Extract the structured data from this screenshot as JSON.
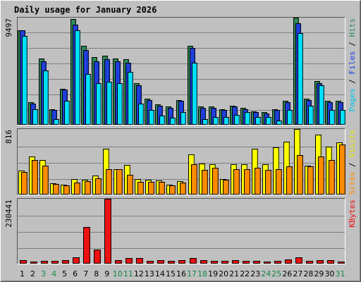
{
  "chart_data": {
    "type": "bar",
    "title": "Daily usage for January 2026",
    "categories": [
      "1",
      "2",
      "3",
      "4",
      "5",
      "6",
      "7",
      "8",
      "9",
      "10",
      "11",
      "12",
      "13",
      "14",
      "15",
      "16",
      "17",
      "18",
      "19",
      "20",
      "21",
      "22",
      "23",
      "24",
      "25",
      "26",
      "27",
      "28",
      "29",
      "30",
      "31"
    ],
    "weekend_days": [
      "3",
      "4",
      "10",
      "11",
      "17",
      "18",
      "24",
      "25",
      "31"
    ],
    "colors": {
      "hits": "#2e8b57",
      "files": "#1f3fdd",
      "pages": "#00e0ff",
      "visits": "#ffff00",
      "sites": "#ff8c00",
      "kbytes": "#ee1111",
      "title": "#0000cc",
      "weekday_label": "#000000",
      "weekend_label": "#118844",
      "background": "#c0c0c0"
    },
    "panels": [
      {
        "id": "top",
        "ymax_label": "9497",
        "ymax": 9497,
        "legend": [
          {
            "text": "Pages",
            "color": "#00c8e8"
          },
          {
            "text": " / ",
            "color": "#000000"
          },
          {
            "text": "Files",
            "color": "#2040e0"
          },
          {
            "text": " / ",
            "color": "#000000"
          },
          {
            "text": "Hits",
            "color": "#2e8b57"
          }
        ],
        "series": [
          {
            "name": "Hits",
            "color": "#2e8b57",
            "values": [
              8400,
              2000,
              5900,
              1400,
              3200,
              9400,
              7000,
              6000,
              6100,
              5900,
              5800,
              3700,
              2300,
              1800,
              1600,
              2200,
              7000,
              1600,
              1600,
              1400,
              1700,
              1500,
              1200,
              1100,
              1400,
              2100,
              9500,
              2300,
              3900,
              2100,
              2100
            ]
          },
          {
            "name": "Files",
            "color": "#1f3fdd",
            "values": [
              8400,
              1900,
              5600,
              1300,
              3100,
              8900,
              6600,
              5600,
              5800,
              5600,
              5500,
              3500,
              2200,
              1700,
              1500,
              2100,
              6800,
              1500,
              1500,
              1300,
              1600,
              1400,
              1100,
              1000,
              1300,
              2000,
              9000,
              2200,
              3700,
              2000,
              2000
            ]
          },
          {
            "name": "Pages",
            "color": "#00e0ff",
            "values": [
              7900,
              1400,
              4800,
              500,
              2100,
              8400,
              4500,
              3700,
              3800,
              3700,
              4700,
              1900,
              1300,
              800,
              600,
              1100,
              5500,
              500,
              700,
              700,
              900,
              1100,
              700,
              700,
              400,
              1300,
              8100,
              1700,
              3500,
              1300,
              1300
            ]
          }
        ]
      },
      {
        "id": "mid",
        "ymax_label": "816",
        "ymax": 816,
        "legend": [
          {
            "text": "Sites",
            "color": "#ff8c00"
          },
          {
            "text": " / ",
            "color": "#000000"
          },
          {
            "text": "Visits",
            "color": "#e8e800"
          }
        ],
        "series": [
          {
            "name": "Visits",
            "color": "#ffff00",
            "values": [
              295,
              470,
              430,
              140,
              125,
              190,
              180,
              235,
              570,
              315,
              365,
              190,
              180,
              175,
              125,
              165,
              500,
              385,
              375,
              195,
              380,
              375,
              570,
              380,
              590,
              655,
              820,
              360,
              745,
              595,
              645
            ]
          },
          {
            "name": "Sites",
            "color": "#ff8c00",
            "values": [
              280,
              430,
              360,
              130,
              115,
              150,
              165,
              200,
              320,
              315,
              250,
              160,
              160,
              160,
              115,
              150,
              380,
              310,
              330,
              185,
              320,
              320,
              330,
              305,
              315,
              355,
              490,
              355,
              470,
              430,
              620
            ]
          }
        ]
      },
      {
        "id": "bot",
        "ymax_label": "230441",
        "ymax": 230441,
        "legend": [
          {
            "text": "KBytes",
            "color": "#ee1111"
          }
        ],
        "series": [
          {
            "name": "KBytes",
            "color": "#ee1111",
            "values": [
              12000,
              7000,
              11000,
              9000,
              12000,
              22000,
              130000,
              49000,
              230441,
              13000,
              20000,
              19000,
              10000,
              12000,
              9500,
              11500,
              20000,
              12000,
              11000,
              9500,
              12000,
              11000,
              9500,
              8500,
              9500,
              14000,
              23000,
              9000,
              12000,
              12000,
              7000
            ]
          }
        ]
      }
    ]
  }
}
